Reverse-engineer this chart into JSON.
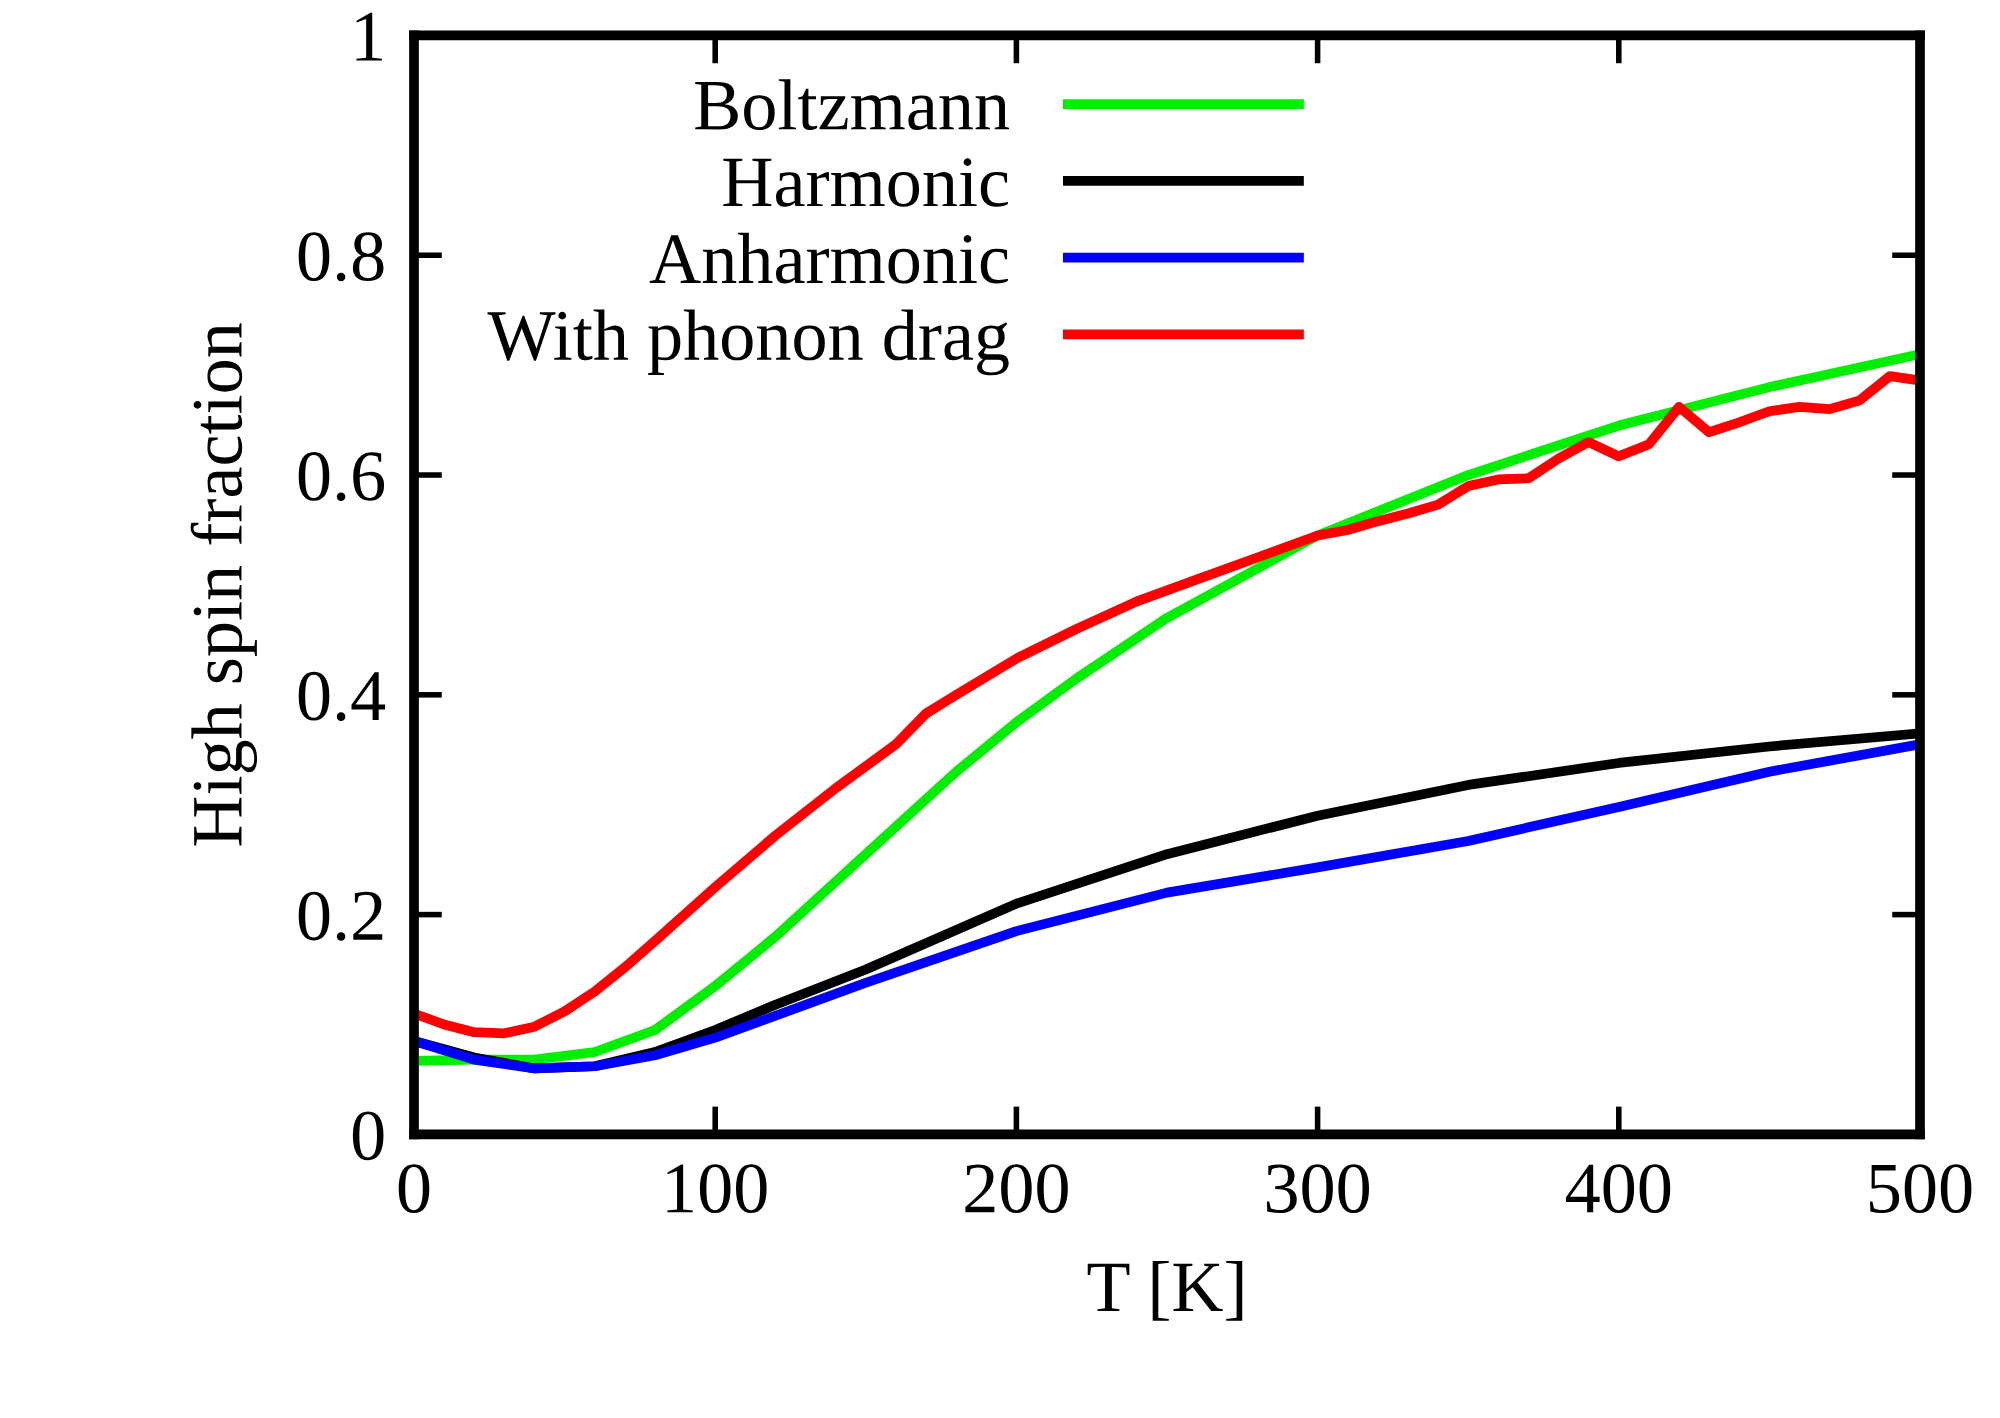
{
  "chart_data": {
    "type": "line",
    "xlabel": "T [K]",
    "ylabel": "High spin fraction",
    "xlim": [
      0,
      500
    ],
    "xticks": [
      0,
      100,
      200,
      300,
      400,
      500
    ],
    "ylim": [
      0,
      1
    ],
    "yticks": [
      0,
      0.2,
      0.4,
      0.6,
      0.8,
      1
    ],
    "grid": false,
    "legend": "top left",
    "marker": "none",
    "line_style": "solid",
    "series": [
      {
        "name": "Boltzmann",
        "color": "#00ee00",
        "x": [
          0,
          20,
          40,
          60,
          80,
          100,
          120,
          140,
          160,
          180,
          200,
          220,
          250,
          300,
          350,
          400,
          450,
          500
        ],
        "values": [
          0.067,
          0.068,
          0.068,
          0.075,
          0.095,
          0.135,
          0.18,
          0.23,
          0.28,
          0.33,
          0.375,
          0.415,
          0.47,
          0.545,
          0.6,
          0.645,
          0.68,
          0.71
        ]
      },
      {
        "name": "Harmonic",
        "color": "#000000",
        "x": [
          0,
          20,
          40,
          60,
          80,
          100,
          120,
          150,
          200,
          250,
          300,
          350,
          400,
          450,
          500
        ],
        "values": [
          0.085,
          0.07,
          0.06,
          0.062,
          0.075,
          0.095,
          0.118,
          0.15,
          0.21,
          0.255,
          0.29,
          0.318,
          0.338,
          0.353,
          0.365
        ]
      },
      {
        "name": "Anharmonic",
        "color": "#0000ff",
        "x": [
          0,
          20,
          40,
          60,
          80,
          100,
          120,
          150,
          200,
          250,
          300,
          350,
          400,
          450,
          500
        ],
        "values": [
          0.085,
          0.068,
          0.06,
          0.062,
          0.072,
          0.088,
          0.108,
          0.138,
          0.185,
          0.22,
          0.243,
          0.267,
          0.298,
          0.33,
          0.355
        ]
      },
      {
        "name": "With phonon drag",
        "color": "#ff0000",
        "x": [
          0,
          10,
          20,
          30,
          40,
          50,
          60,
          70,
          80,
          100,
          120,
          140,
          160,
          170,
          180,
          200,
          220,
          240,
          260,
          280,
          300,
          310,
          320,
          330,
          340,
          350,
          360,
          370,
          380,
          390,
          400,
          410,
          420,
          430,
          440,
          450,
          460,
          470,
          480,
          490,
          500
        ],
        "values": [
          0.11,
          0.1,
          0.093,
          0.092,
          0.098,
          0.112,
          0.13,
          0.152,
          0.176,
          0.225,
          0.272,
          0.315,
          0.355,
          0.383,
          0.4,
          0.433,
          0.46,
          0.485,
          0.505,
          0.525,
          0.545,
          0.55,
          0.558,
          0.565,
          0.573,
          0.59,
          0.596,
          0.597,
          0.615,
          0.63,
          0.617,
          0.628,
          0.662,
          0.639,
          0.648,
          0.658,
          0.662,
          0.66,
          0.668,
          0.69,
          0.686
        ]
      }
    ]
  }
}
